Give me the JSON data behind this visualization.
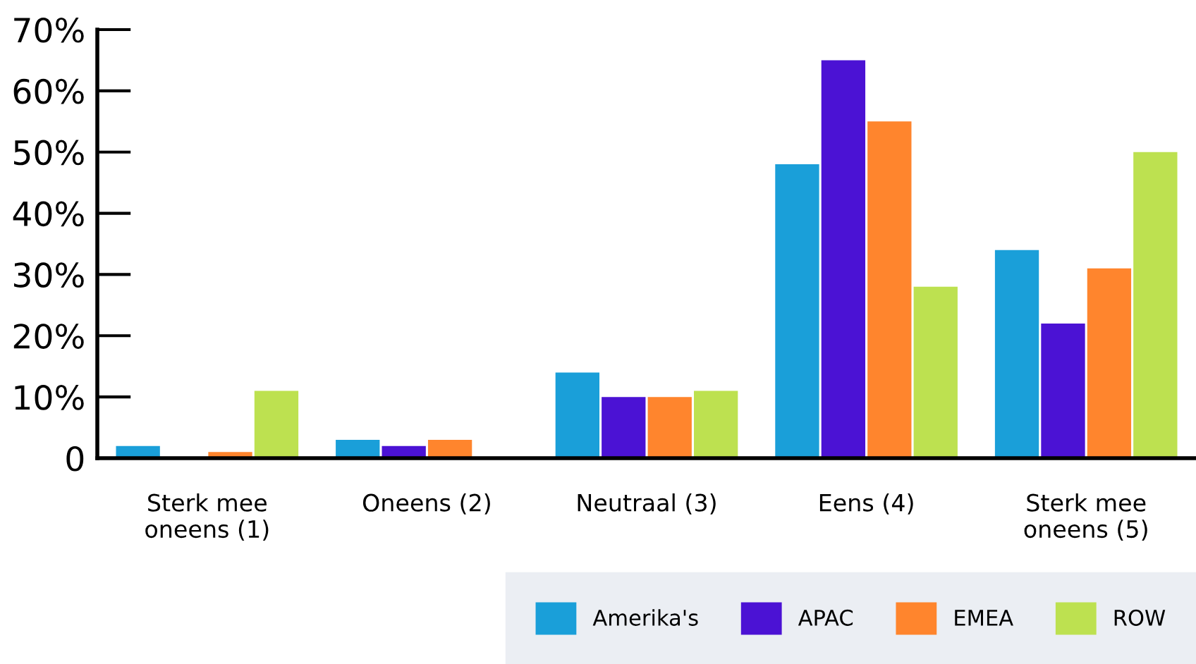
{
  "chart_data": {
    "type": "bar",
    "categories": [
      "Sterk mee\noneens (1)",
      "Oneens (2)",
      "Neutraal (3)",
      "Eens (4)",
      "Sterk mee\noneens (5)"
    ],
    "series": [
      {
        "name": "Amerika's",
        "color": "#1a9fd9",
        "values": [
          2,
          3,
          14,
          48,
          34
        ]
      },
      {
        "name": "APAC",
        "color": "#4b12d4",
        "values": [
          0,
          2,
          10,
          65,
          22
        ]
      },
      {
        "name": "EMEA",
        "color": "#ff852d",
        "values": [
          1,
          3,
          10,
          55,
          31
        ]
      },
      {
        "name": "ROW",
        "color": "#bde150",
        "values": [
          11,
          0,
          11,
          28,
          50
        ]
      }
    ],
    "ylim": [
      0,
      70
    ],
    "yticks": [
      "0",
      {
        "value": 10,
        "label": "10%"
      },
      {
        "value": 20,
        "label": "20%"
      },
      {
        "value": 30,
        "label": "30%"
      },
      {
        "value": 40,
        "label": "40%"
      },
      {
        "value": 50,
        "label": "50%"
      },
      {
        "value": 60,
        "label": "60%"
      },
      {
        "value": 70,
        "label": "70%"
      }
    ],
    "grid": false,
    "legend": "bottom right"
  }
}
